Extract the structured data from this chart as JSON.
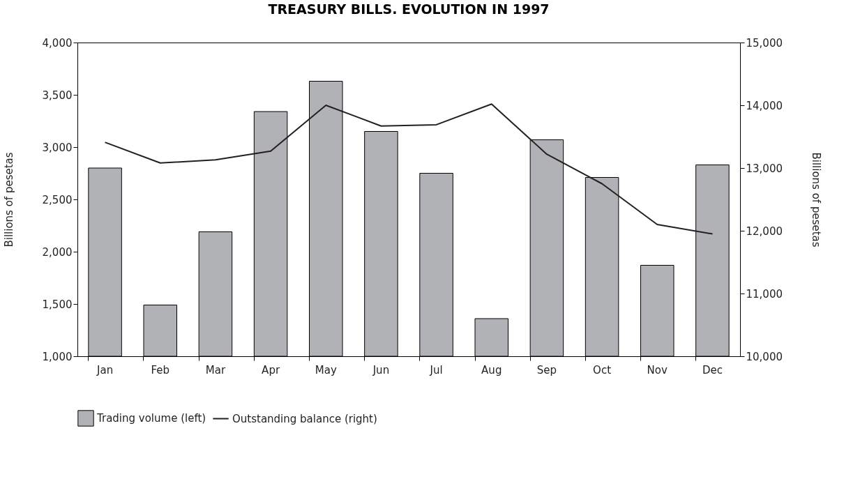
{
  "chart_data": {
    "type": "bar",
    "title": "TREASURY BILLS. EVOLUTION IN 1997",
    "ylabel": "Billions of pesetas",
    "y2label": "Billions of pesetas",
    "categories": [
      "Jan",
      "Feb",
      "Mar",
      "Apr",
      "May",
      "Jun",
      "Jul",
      "Aug",
      "Sep",
      "Oct",
      "Nov",
      "Dec"
    ],
    "series": [
      {
        "name": "Trading volume (left)",
        "color": "#b1b2b6",
        "values": [
          2800,
          1490,
          2190,
          3340,
          3630,
          3150,
          2750,
          1360,
          3070,
          2710,
          1870,
          2830
        ]
      },
      {
        "name": "Outstanding balance (right)",
        "type": "line",
        "axis": "y2",
        "color": "#231f20",
        "values": [
          13410,
          13080,
          13130,
          13270,
          14000,
          13670,
          13690,
          14020,
          13220,
          12750,
          12100,
          11950
        ]
      }
    ],
    "ylim": [
      1000,
      4000
    ],
    "yticks": [
      {
        "value": 1000,
        "label": "1,000"
      },
      {
        "value": 1500,
        "label": "1,500"
      },
      {
        "value": 2000,
        "label": "2,000"
      },
      {
        "value": 2500,
        "label": "2,500"
      },
      {
        "value": 3000,
        "label": "3,000"
      },
      {
        "value": 3500,
        "label": "3,500"
      },
      {
        "value": 4000,
        "label": "4,000"
      }
    ],
    "y2lim": [
      10000,
      15000
    ],
    "y2ticks": [
      {
        "value": 10000,
        "label": "10,000"
      },
      {
        "value": 11000,
        "label": "11,000"
      },
      {
        "value": 12000,
        "label": "12,000"
      },
      {
        "value": 13000,
        "label": "13,000"
      },
      {
        "value": 14000,
        "label": "14,000"
      },
      {
        "value": 15000,
        "label": "15,000"
      }
    ],
    "grid": false,
    "legend": "bottom",
    "marker": "none",
    "line_style": "solid"
  }
}
